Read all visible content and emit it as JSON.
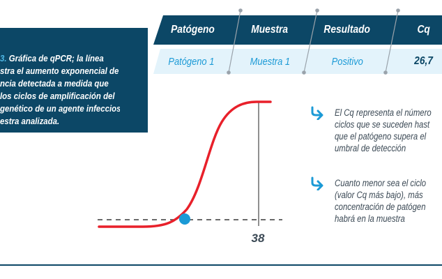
{
  "figure": {
    "number_fragment": "3.",
    "caption_lines": [
      " Gráfica de qPCR; la línea",
      "stra el aumento exponencial de",
      "ncia detectada a medida que",
      "los ciclos de amplificación del",
      "genético de un agente infeccioso",
      "estra analizada."
    ]
  },
  "table": {
    "headers": [
      "Patógeno",
      "Muestra",
      "Resultado",
      "Cq"
    ],
    "row": [
      "Patógeno 1",
      "Muestra 1",
      "Positivo",
      "26,7"
    ]
  },
  "chart_data": {
    "type": "line",
    "title": "",
    "xlabel": "",
    "ylabel": "",
    "threshold_cycle_label": "38",
    "curve": "sigmoid amplification curve (red) crossing the dashed detection threshold at the Cq point (blue dot)",
    "colors": {
      "curve": "#e8202a",
      "cq_point": "#1b9ad6",
      "threshold": "#555555"
    }
  },
  "notes": [
    {
      "lines": [
        "El Cq representa el número",
        "ciclos que se suceden hast",
        "que el patógeno supera el",
        "umbral de detección"
      ]
    },
    {
      "lines": [
        "Cuanto menor sea el ciclo",
        "(valor Cq más bajo), más",
        "concentración de patógen",
        "habrá en la muestra"
      ]
    }
  ],
  "colors": {
    "navy": "#0c4766",
    "light_blue": "#1b9ad6",
    "pale_blue": "#e3f3fb",
    "red": "#e8202a"
  }
}
